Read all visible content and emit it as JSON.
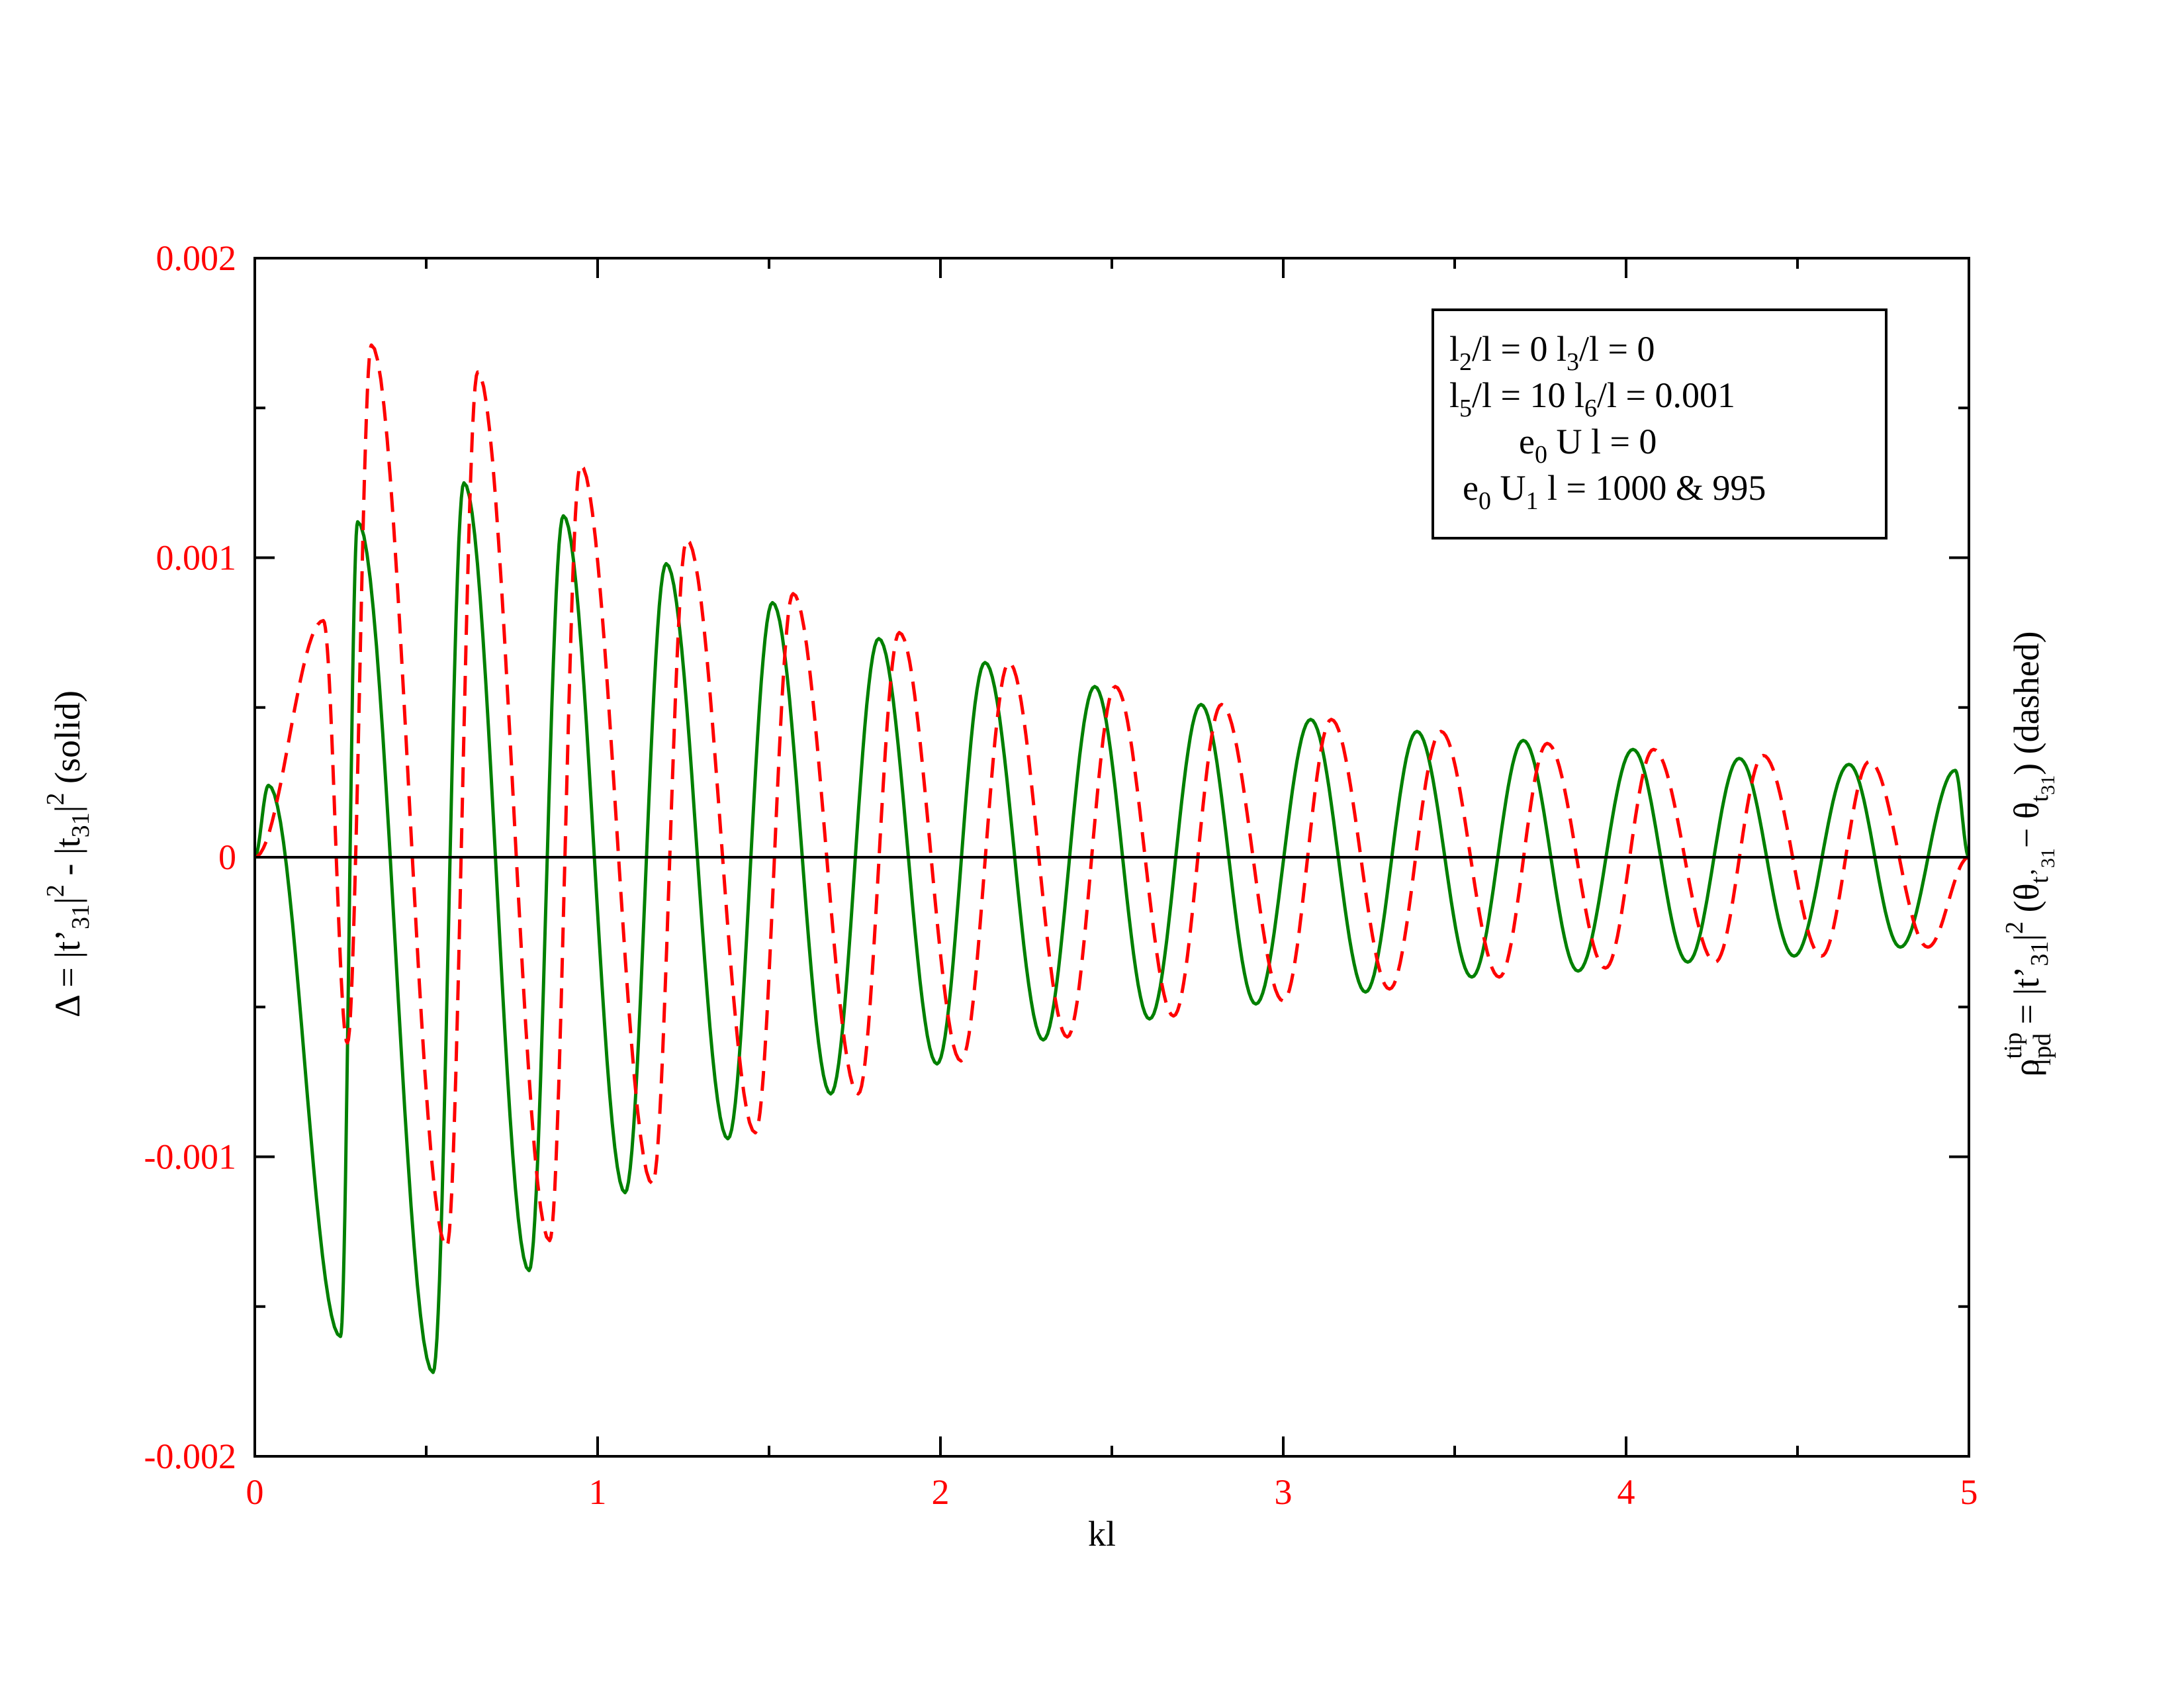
{
  "chart_data": {
    "type": "line",
    "xlabel": "kl",
    "ylabel_left": {
      "prefix": "Δ = |t’",
      "sub1": "31",
      "mid1": "|",
      "sup1": "2",
      "mid2": " - |t",
      "sub2": "31",
      "mid3": "|",
      "sup2": "2",
      "suffix": " (solid)"
    },
    "ylabel_right": {
      "rho": "ρ",
      "sup": "tip",
      "sub": "lpd",
      "mid1": " = |t’",
      "sub1": "31",
      "mid2": "|",
      "sup2": "2",
      "mid3": " (θ",
      "sub_t": "t’",
      "sub_t_sub": "31",
      "mid4": "− θ",
      "sub_t2": "t",
      "sub_t2_sub": "31",
      "suffix": ") (dashed)"
    },
    "xlim": [
      0,
      5
    ],
    "ylim": [
      -0.002,
      0.002
    ],
    "x_ticks": [
      "0",
      "1",
      "2",
      "3",
      "4",
      "5"
    ],
    "y_ticks": [
      "-0.002",
      "-0.001",
      "0",
      "0.001",
      "0.002"
    ],
    "zero_line": true,
    "legend_position": "top-right",
    "legend_lines": [
      {
        "a": "l",
        "a_sub": "2",
        "b": "/l = 0  l",
        "b_sub": "3",
        "c": "/l = 0"
      },
      {
        "a": "l",
        "a_sub": "5",
        "b": "/l = 10  l",
        "b_sub": "6",
        "c": "/l = 0.001"
      },
      {
        "a": "e",
        "a_sub": "0",
        "b": " U l = 0",
        "b_sub": "",
        "c": ""
      },
      {
        "a": "e",
        "a_sub": "0",
        "b": " U",
        "b_sub": "1",
        "c": " l = 1000 & 995"
      }
    ],
    "series": [
      {
        "style": "solid",
        "color": "#008000",
        "peaks": [
          [
            0.04,
            0.00024
          ],
          [
            0.3,
            0.00112
          ],
          [
            0.61,
            0.00125
          ],
          [
            0.9,
            0.00114
          ],
          [
            1.2,
            0.00098
          ],
          [
            1.51,
            0.00085
          ],
          [
            1.82,
            0.00073
          ],
          [
            2.13,
            0.00065
          ],
          [
            2.45,
            0.00057
          ],
          [
            2.76,
            0.00051
          ],
          [
            3.08,
            0.00046
          ],
          [
            3.39,
            0.00042
          ],
          [
            3.7,
            0.00039
          ],
          [
            4.02,
            0.00036
          ],
          [
            4.33,
            0.00033
          ],
          [
            4.65,
            0.00031
          ],
          [
            4.96,
            0.00029
          ]
        ],
        "troughs": [
          [
            0.25,
            -0.0016
          ],
          [
            0.52,
            -0.00172
          ],
          [
            0.8,
            -0.00138
          ],
          [
            1.08,
            -0.00112
          ],
          [
            1.38,
            -0.00094
          ],
          [
            1.68,
            -0.00079
          ],
          [
            1.99,
            -0.00069
          ],
          [
            2.3,
            -0.00061
          ],
          [
            2.61,
            -0.00054
          ],
          [
            2.92,
            -0.00049
          ],
          [
            3.24,
            -0.00045
          ],
          [
            3.55,
            -0.0004
          ],
          [
            3.86,
            -0.00038
          ],
          [
            4.18,
            -0.00035
          ],
          [
            4.49,
            -0.00033
          ],
          [
            4.8,
            -0.0003
          ]
        ]
      },
      {
        "style": "dashed",
        "color": "#ff0000",
        "peaks": [
          [
            0.2,
            0.00079
          ],
          [
            0.34,
            0.00171
          ],
          [
            0.65,
            0.00162
          ],
          [
            0.95,
            0.00131
          ],
          [
            1.26,
            0.00106
          ],
          [
            1.57,
            0.00088
          ],
          [
            1.88,
            0.00075
          ],
          [
            2.2,
            0.00065
          ],
          [
            2.51,
            0.00057
          ],
          [
            2.82,
            0.00051
          ],
          [
            3.14,
            0.00046
          ],
          [
            3.46,
            0.00042
          ],
          [
            3.77,
            0.00038
          ],
          [
            4.08,
            0.00036
          ],
          [
            4.4,
            0.00034
          ],
          [
            4.71,
            0.00032
          ]
        ],
        "troughs": [
          [
            0.27,
            -0.00062
          ],
          [
            0.56,
            -0.0013
          ],
          [
            0.86,
            -0.00128
          ],
          [
            1.16,
            -0.00109
          ],
          [
            1.46,
            -0.00092
          ],
          [
            1.76,
            -0.00079
          ],
          [
            2.06,
            -0.00068
          ],
          [
            2.37,
            -0.0006
          ],
          [
            2.68,
            -0.00053
          ],
          [
            3.0,
            -0.00048
          ],
          [
            3.31,
            -0.00044
          ],
          [
            3.63,
            -0.0004
          ],
          [
            3.94,
            -0.00037
          ],
          [
            4.26,
            -0.00035
          ],
          [
            4.57,
            -0.00033
          ],
          [
            4.88,
            -0.0003
          ]
        ]
      }
    ]
  }
}
